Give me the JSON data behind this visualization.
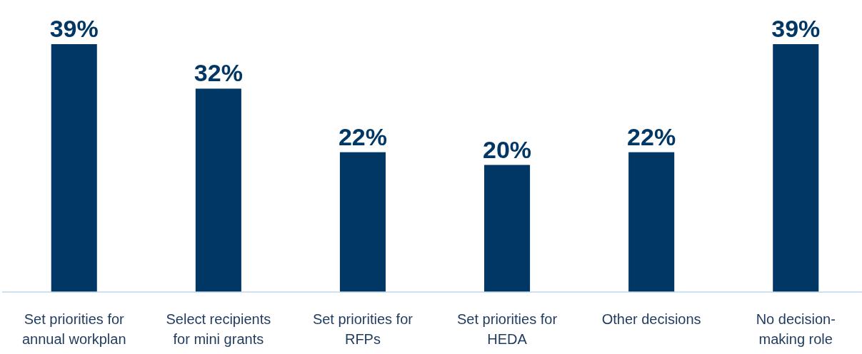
{
  "chart_data": {
    "type": "bar",
    "categories": [
      "Set priorities for annual workplan",
      "Select recipients for mini grants",
      "Set priorities for RFPs",
      "Set priorities for HEDA",
      "Other decisions",
      "No decision-making role"
    ],
    "values": [
      39,
      32,
      22,
      20,
      22,
      39
    ],
    "value_labels": [
      "39%",
      "32%",
      "22%",
      "20%",
      "22%",
      "39%"
    ],
    "color": "#003764"
  }
}
